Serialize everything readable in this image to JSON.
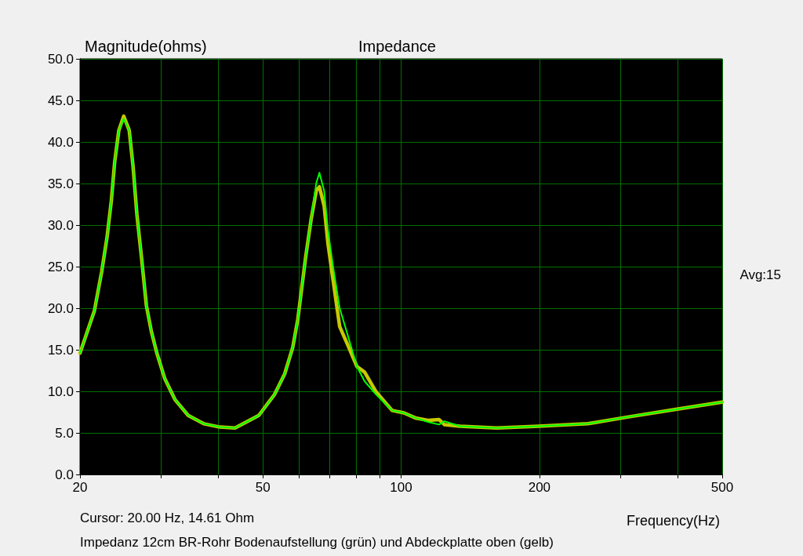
{
  "chart_data": {
    "type": "line",
    "title": "Impedance",
    "ylabel": "Magnitude(ohms)",
    "xlabel": "Frequency(Hz)",
    "log": "x",
    "grid": true,
    "marker": "none",
    "line_style": "solid",
    "xlim": [
      20,
      500
    ],
    "xticks": [
      20,
      {
        "value": 30,
        "label": null
      },
      {
        "value": 40,
        "label": null
      },
      50,
      {
        "value": 60,
        "label": null
      },
      {
        "value": 70,
        "label": null
      },
      {
        "value": 80,
        "label": null
      },
      {
        "value": 90,
        "label": null
      },
      100,
      200,
      {
        "value": 300,
        "label": null
      },
      {
        "value": 400,
        "label": null
      },
      500
    ],
    "ylim": [
      0,
      50
    ],
    "yticks": [
      {
        "value": 0,
        "label": "0.0"
      },
      {
        "value": 5,
        "label": "5.0"
      },
      {
        "value": 10,
        "label": "10.0"
      },
      {
        "value": 15,
        "label": "15.0"
      },
      {
        "value": 20,
        "label": "20.0"
      },
      {
        "value": 25,
        "label": "25.0"
      },
      {
        "value": 30,
        "label": "30.0"
      },
      {
        "value": 35,
        "label": "35.0"
      },
      {
        "value": 40,
        "label": "40.0"
      },
      {
        "value": 45,
        "label": "45.0"
      },
      {
        "value": 50,
        "label": "50.0"
      }
    ],
    "x": [
      20,
      21.5,
      22.3,
      22.9,
      23.4,
      23.8,
      24.3,
      24.9,
      25.6,
      26.1,
      26.6,
      27.2,
      27.9,
      28.6,
      29.4,
      30.6,
      32.2,
      34.4,
      37.2,
      40.3,
      43.5,
      49.0,
      53.0,
      55.8,
      58.1,
      59.6,
      60.8,
      62.0,
      63.7,
      65.4,
      66.4,
      68.0,
      69.3,
      71.1,
      73.5,
      76.5,
      80.1,
      83.3,
      88.3,
      95.6,
      101.4,
      107.4,
      114.8,
      121.0,
      124.2,
      134.3,
      161.4,
      199,
      255,
      310.6,
      403.6,
      500
    ],
    "series": [
      {
        "color": "#00ff00",
        "values": [
          14.6,
          19.7,
          24.4,
          28.5,
          32.9,
          37.6,
          41.4,
          42.8,
          41.4,
          37.0,
          31.3,
          26.3,
          20.3,
          17.2,
          14.6,
          11.5,
          9.0,
          7.1,
          6.1,
          5.7,
          5.6,
          7.1,
          9.6,
          12.1,
          15.3,
          18.7,
          22.5,
          26.2,
          30.7,
          35.1,
          36.3,
          34.1,
          29.4,
          25.0,
          20.0,
          16.8,
          13.0,
          11.2,
          9.6,
          7.7,
          7.4,
          6.8,
          6.3,
          6.0,
          6.4,
          5.8,
          5.6,
          5.8,
          6.1,
          6.9,
          7.9,
          8.7
        ]
      },
      {
        "color": "#c8c800",
        "values": [
          14.6,
          19.7,
          24.4,
          28.5,
          32.9,
          37.6,
          41.4,
          43.1,
          41.4,
          37.0,
          31.3,
          26.3,
          20.3,
          17.2,
          14.6,
          11.5,
          9.0,
          7.1,
          6.1,
          5.7,
          5.6,
          7.1,
          9.6,
          12.1,
          15.3,
          18.7,
          22.5,
          26.2,
          30.7,
          34.2,
          34.6,
          32.3,
          27.8,
          23.4,
          17.8,
          15.6,
          13.0,
          12.3,
          9.9,
          7.7,
          7.4,
          6.8,
          6.5,
          6.6,
          6.0,
          5.8,
          5.6,
          5.8,
          6.1,
          6.9,
          7.9,
          8.7
        ]
      }
    ],
    "annotations": [
      "Avg:15",
      "Cursor: 20.00 Hz, 14.61 Ohm",
      "Impedanz 12cm BR-Rohr Bodenaufstellung (grün) und Abdeckplatte oben (gelb)"
    ]
  }
}
